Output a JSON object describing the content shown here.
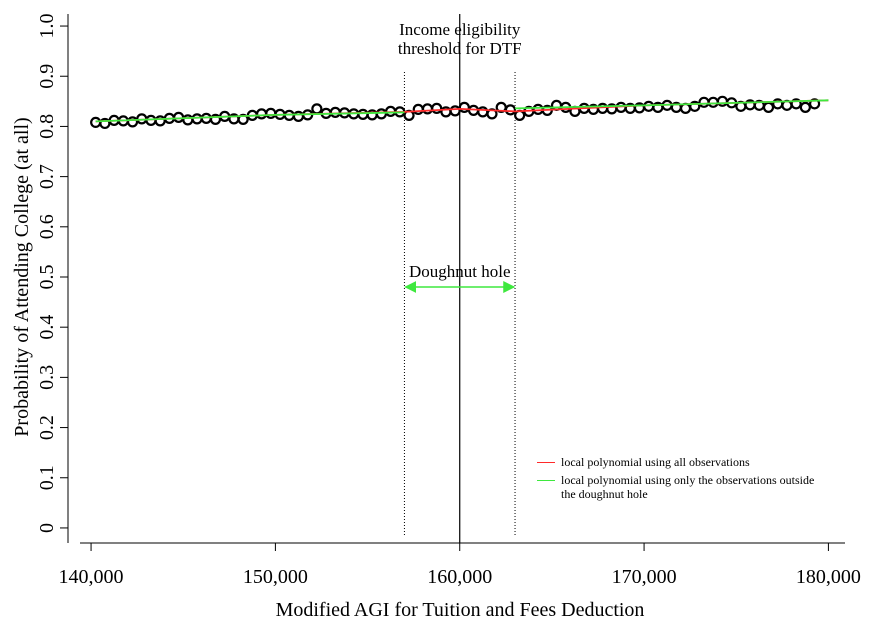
{
  "chart_data": {
    "type": "scatter",
    "x_label": "Modified AGI for Tuition and Fees Deduction",
    "y_label": "Probability of Attending College (at all)",
    "xlim": [
      139400,
      180900
    ],
    "ylim": [
      -0.03,
      1.024
    ],
    "xticks": [
      {
        "value": 140000,
        "label": "140,000"
      },
      {
        "value": 150000,
        "label": "150,000"
      },
      {
        "value": 160000,
        "label": "160,000"
      },
      {
        "value": 170000,
        "label": "170,000"
      },
      {
        "value": 180000,
        "label": "180,000"
      }
    ],
    "yticks": [
      0,
      0.1,
      0.2,
      0.3,
      0.4,
      0.5,
      0.6,
      0.7,
      0.8,
      0.9,
      {
        "value": 1,
        "label": "1.0"
      }
    ],
    "marker_color": "#000000",
    "x": [
      140250,
      140750,
      141250,
      141750,
      142250,
      142750,
      143250,
      143750,
      144250,
      144750,
      145250,
      145750,
      146250,
      146750,
      147250,
      147750,
      148250,
      148750,
      149250,
      149750,
      150250,
      150750,
      151250,
      151750,
      152250,
      152750,
      153250,
      153750,
      154250,
      154750,
      155250,
      155750,
      156250,
      156750,
      157250,
      157750,
      158250,
      158750,
      159250,
      159750,
      160250,
      160750,
      161250,
      161750,
      162250,
      162750,
      163250,
      163750,
      164250,
      164750,
      165250,
      165750,
      166250,
      166750,
      167250,
      167750,
      168250,
      168750,
      169250,
      169750,
      170250,
      170750,
      171250,
      171750,
      172250,
      172750,
      173250,
      173750,
      174250,
      174750,
      175250,
      175750,
      176250,
      176750,
      177250,
      177750,
      178250,
      178750,
      179250
    ],
    "values": [
      0.808,
      0.806,
      0.812,
      0.811,
      0.809,
      0.815,
      0.812,
      0.811,
      0.816,
      0.818,
      0.813,
      0.815,
      0.816,
      0.814,
      0.82,
      0.815,
      0.814,
      0.822,
      0.825,
      0.826,
      0.824,
      0.822,
      0.82,
      0.823,
      0.835,
      0.826,
      0.828,
      0.827,
      0.825,
      0.824,
      0.823,
      0.825,
      0.83,
      0.829,
      0.822,
      0.834,
      0.835,
      0.836,
      0.829,
      0.831,
      0.838,
      0.832,
      0.829,
      0.825,
      0.838,
      0.833,
      0.822,
      0.83,
      0.834,
      0.832,
      0.842,
      0.838,
      0.83,
      0.836,
      0.834,
      0.836,
      0.835,
      0.838,
      0.836,
      0.837,
      0.84,
      0.838,
      0.842,
      0.838,
      0.836,
      0.84,
      0.848,
      0.848,
      0.85,
      0.847,
      0.84,
      0.843,
      0.842,
      0.838,
      0.845,
      0.842,
      0.845,
      0.838,
      0.845
    ],
    "series": [
      {
        "name": "local polynomial using all observations",
        "color": "#ff2a2a",
        "x": [
          140250,
          150000,
          157000,
          160000,
          163000,
          170000,
          180000
        ],
        "values": [
          0.81,
          0.823,
          0.829,
          0.835,
          0.83,
          0.842,
          0.852
        ]
      },
      {
        "name": "local polynomial using only the observations outside the doughnut hole",
        "color": "#3ee83e",
        "x": [
          140250,
          150000,
          157000,
          160000,
          163000,
          170000,
          180000
        ],
        "values": [
          0.81,
          0.823,
          0.828,
          null,
          0.836,
          0.842,
          0.852
        ]
      }
    ],
    "threshold": {
      "x": 160000,
      "label": [
        "Income eligibility",
        "threshold for DTF"
      ]
    },
    "doughnut": {
      "x": [
        157000,
        163000
      ],
      "arrow_y": 0.48,
      "label": "Doughnut hole",
      "color": "#3ee83e"
    },
    "legend_position": "bottom-right"
  }
}
